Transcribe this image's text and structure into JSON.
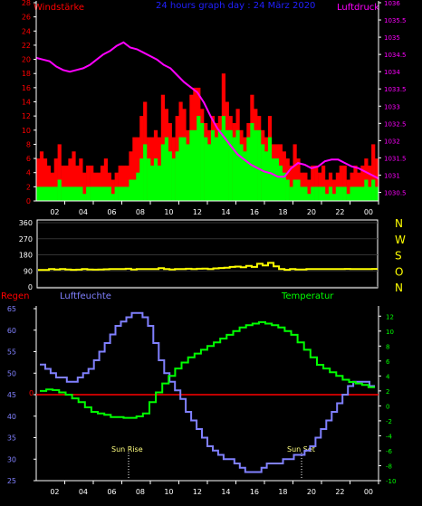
{
  "chart_data": [
    {
      "type": "bar",
      "panel": "wind",
      "title": "24 hours graph day : 24 März 2020",
      "left_label": "Windstärke",
      "right_label": "Luftdruck",
      "x_ticks": [
        "02",
        "04",
        "06",
        "08",
        "10",
        "12",
        "14",
        "16",
        "18",
        "20",
        "22",
        "00"
      ],
      "y_left_ticks": [
        "0",
        "2",
        "4",
        "6",
        "8",
        "10",
        "12",
        "14",
        "16",
        "18",
        "20",
        "22",
        "24",
        "26",
        "28"
      ],
      "y_right_ticks": [
        "1030.5",
        "1031",
        "1031.5",
        "1032",
        "1032.5",
        "1033",
        "1033.5",
        "1034",
        "1034.5",
        "1035",
        "1035.5",
        "1036"
      ],
      "ylim": [
        0,
        28
      ],
      "ylim_right": [
        1030.25,
        1036
      ],
      "series": [
        {
          "name": "Windstärke",
          "color": "#ff0000",
          "values": [
            6,
            7,
            6,
            5,
            4,
            6,
            8,
            5,
            5,
            6,
            7,
            5,
            6,
            4,
            5,
            5,
            4,
            4,
            5,
            6,
            4,
            3,
            4,
            5,
            5,
            5,
            7,
            9,
            9,
            12,
            14,
            9,
            9,
            10,
            9,
            15,
            13,
            11,
            9,
            12,
            14,
            13,
            10,
            15,
            16,
            16,
            13,
            11,
            10,
            12,
            11,
            12,
            18,
            14,
            12,
            11,
            13,
            10,
            9,
            11,
            15,
            13,
            12,
            10,
            9,
            12,
            8,
            8,
            8,
            7,
            6,
            5,
            8,
            6,
            4,
            4,
            3,
            5,
            5,
            4,
            5,
            3,
            4,
            3,
            4,
            5,
            5,
            3,
            4,
            5,
            4,
            5,
            6,
            5,
            8,
            6
          ]
        },
        {
          "name": "Windstärke Mittel",
          "color": "#00ff00",
          "values": [
            2,
            2,
            2,
            2,
            2,
            2,
            3,
            2,
            2,
            2,
            2,
            2,
            2,
            1,
            2,
            2,
            2,
            2,
            2,
            2,
            2,
            1,
            2,
            2,
            2,
            2,
            3,
            3,
            4,
            6,
            8,
            6,
            5,
            6,
            5,
            8,
            9,
            7,
            6,
            7,
            9,
            9,
            8,
            10,
            10,
            12,
            11,
            9,
            8,
            10,
            9,
            10,
            12,
            10,
            10,
            9,
            10,
            8,
            7,
            9,
            11,
            10,
            10,
            8,
            7,
            9,
            6,
            6,
            5,
            4,
            3,
            2,
            3,
            3,
            2,
            2,
            1,
            2,
            2,
            2,
            2,
            1,
            2,
            1,
            2,
            2,
            2,
            1,
            2,
            2,
            2,
            2,
            3,
            2,
            3,
            2
          ]
        },
        {
          "name": "Luftdruck",
          "color": "#ff00ff",
          "values": [
            1034.4,
            1034.35,
            1034.3,
            1034.15,
            1034.05,
            1034.0,
            1034.05,
            1034.1,
            1034.2,
            1034.35,
            1034.5,
            1034.6,
            1034.75,
            1034.85,
            1034.7,
            1034.65,
            1034.55,
            1034.45,
            1034.35,
            1034.2,
            1034.1,
            1033.9,
            1033.7,
            1033.55,
            1033.4,
            1033.1,
            1032.7,
            1032.35,
            1032.1,
            1031.85,
            1031.6,
            1031.45,
            1031.3,
            1031.2,
            1031.1,
            1031.05,
            1030.95,
            1030.95,
            1031.2,
            1031.35,
            1031.3,
            1031.2,
            1031.25,
            1031.4,
            1031.45,
            1031.45,
            1031.35,
            1031.25,
            1031.2,
            1031.1,
            1031.0,
            1030.9
          ]
        }
      ]
    },
    {
      "type": "line",
      "panel": "direction",
      "y_ticks": [
        "360",
        "270",
        "180",
        "90",
        "0"
      ],
      "side_labels": [
        "N",
        "W",
        "S",
        "O",
        "N"
      ],
      "ylim": [
        0,
        360
      ],
      "series": [
        {
          "name": "Windrichtung",
          "color": "#ffff00",
          "values": [
            95,
            95,
            100,
            98,
            100,
            98,
            96,
            97,
            100,
            98,
            97,
            98,
            99,
            100,
            100,
            100,
            102,
            98,
            100,
            100,
            100,
            100,
            105,
            100,
            98,
            100,
            100,
            102,
            100,
            102,
            103,
            100,
            104,
            106,
            108,
            112,
            114,
            110,
            118,
            112,
            130,
            120,
            135,
            115,
            100,
            96,
            100,
            98,
            98,
            100,
            100,
            100,
            100,
            100,
            100,
            100,
            101,
            100,
            100,
            100,
            100,
            101
          ]
        }
      ]
    },
    {
      "type": "line",
      "panel": "climate",
      "left_title": "Regen",
      "mid_title": "Luftfeuchte",
      "right_title": "Temperatur",
      "x_ticks": [
        "02",
        "04",
        "06",
        "08",
        "10",
        "12",
        "14",
        "16",
        "18",
        "20",
        "22",
        "00"
      ],
      "y_left_ticks": [
        "25",
        "30",
        "35",
        "40",
        "45",
        "50",
        "55",
        "60",
        "65"
      ],
      "y_right_ticks": [
        "-10",
        "-8",
        "-6",
        "-4",
        "-2",
        "0",
        "2",
        "4",
        "6",
        "8",
        "10",
        "12"
      ],
      "regen_tick": "0",
      "annotations": [
        "Sun Rise",
        "Sun Set"
      ],
      "ylim": [
        25,
        65
      ],
      "ylim_right": [
        -10,
        13
      ],
      "series": [
        {
          "name": "Luftfeuchte",
          "color": "#8080ff",
          "values": [
            52,
            51,
            50,
            49,
            49,
            48,
            48,
            49,
            50,
            51,
            53,
            55,
            57,
            59,
            61,
            62,
            63,
            64,
            64,
            63,
            61,
            57,
            53,
            50,
            48,
            46,
            44,
            41,
            39,
            37,
            35,
            33,
            32,
            31,
            30,
            30,
            29,
            28,
            27,
            27,
            27,
            28,
            29,
            29,
            29,
            30,
            30,
            31,
            31,
            32,
            33,
            35,
            37,
            39,
            41,
            43,
            45,
            47,
            48,
            48,
            48,
            47
          ]
        },
        {
          "name": "Temperatur",
          "color": "#00ff00",
          "values": [
            2.0,
            2.2,
            2.1,
            1.8,
            1.5,
            1.0,
            0.5,
            -0.2,
            -0.8,
            -1.0,
            -1.2,
            -1.5,
            -1.5,
            -1.6,
            -1.6,
            -1.4,
            -1.0,
            0.5,
            1.8,
            3.0,
            4.0,
            5.0,
            5.8,
            6.5,
            7.0,
            7.5,
            8.0,
            8.5,
            9.0,
            9.5,
            10.0,
            10.5,
            10.8,
            11.0,
            11.2,
            11.0,
            10.8,
            10.5,
            10.0,
            9.5,
            8.5,
            7.5,
            6.5,
            5.5,
            5.0,
            4.5,
            4.0,
            3.5,
            3.2,
            3.0,
            2.8,
            2.5
          ]
        },
        {
          "name": "Regen",
          "color": "#ff0000",
          "values": [
            0,
            0,
            0,
            0,
            0,
            0,
            0,
            0,
            0,
            0,
            0,
            0,
            0
          ]
        }
      ]
    }
  ]
}
